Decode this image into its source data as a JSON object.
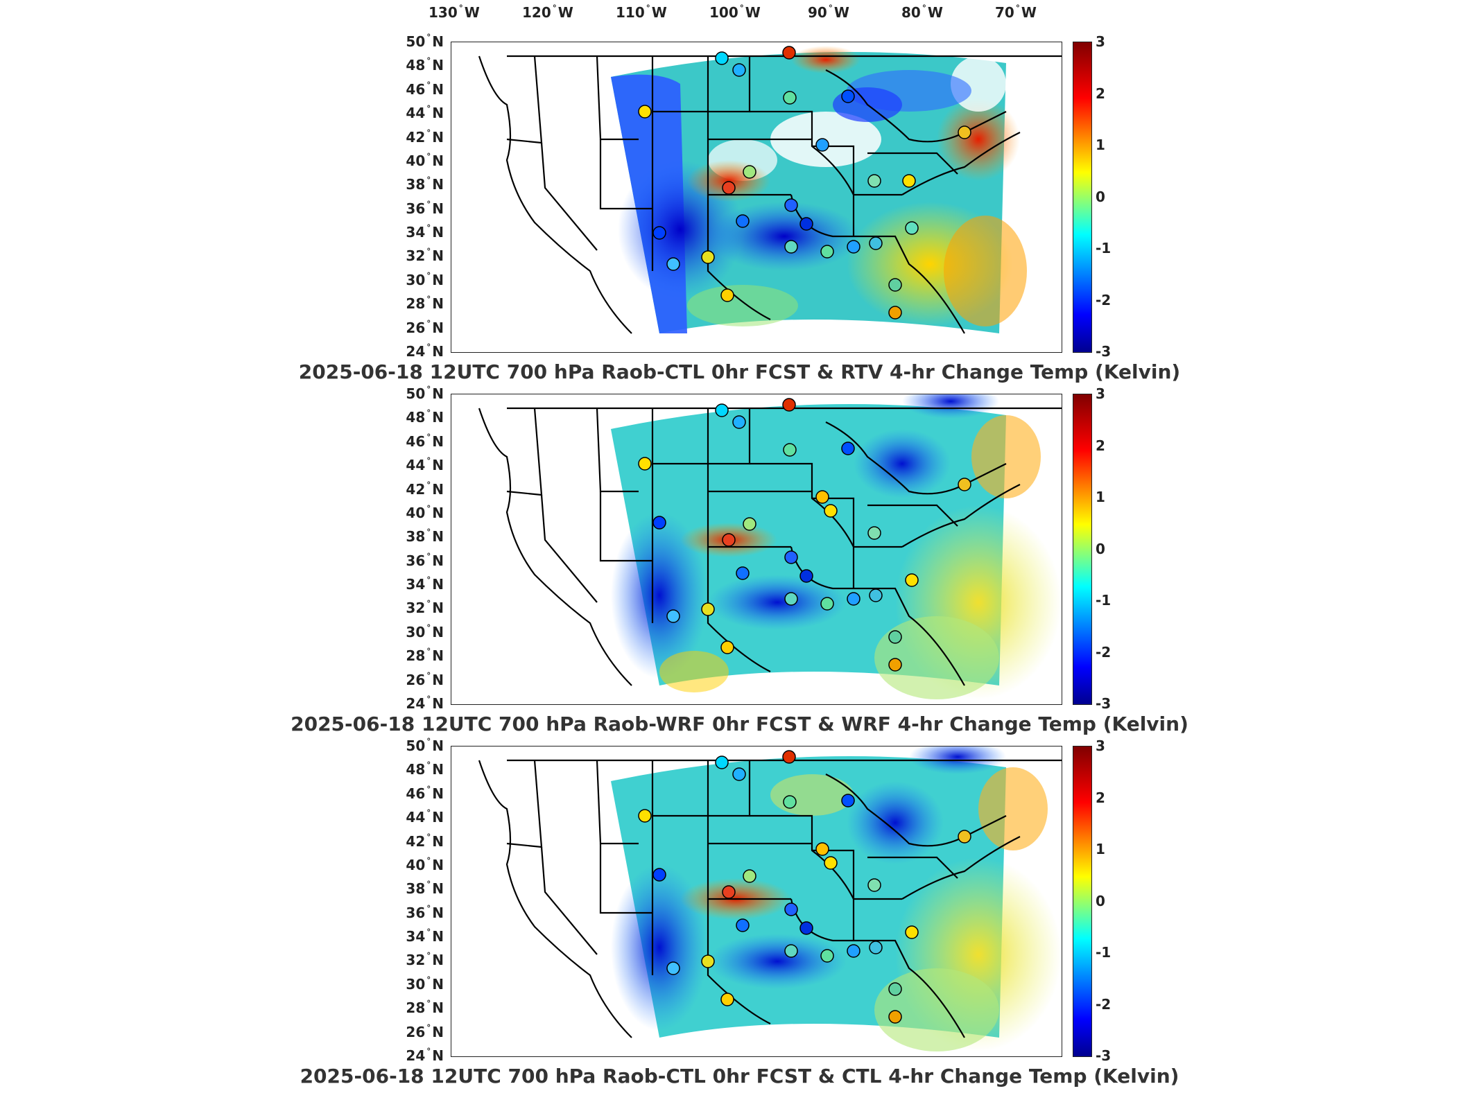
{
  "longitude_labels": [
    "130",
    "120",
    "110",
    "100",
    "90",
    "80",
    "70"
  ],
  "lon_suffix": "W",
  "latitude_labels": [
    "50",
    "48",
    "46",
    "44",
    "42",
    "40",
    "38",
    "36",
    "34",
    "32",
    "30",
    "28",
    "26",
    "24"
  ],
  "lat_suffix": "N",
  "degree_symbol": "°",
  "colorbar": {
    "min": -3,
    "max": 3,
    "ticks": [
      "3",
      "2",
      "1",
      "0",
      "-1",
      "-2",
      "-3"
    ],
    "colormap": "jet"
  },
  "panels": [
    {
      "title": "2025-06-18 12UTC 700 hPa Raob-CTL 0hr FCST & RTV 4-hr Change Temp (Kelvin)"
    },
    {
      "title": "2025-06-18 12UTC 700 hPa Raob-WRF 0hr FCST & WRF 4-hr Change Temp (Kelvin)"
    },
    {
      "title": "2025-06-18 12UTC 700 hPa Raob-CTL 0hr FCST & CTL 4-hr Change Temp (Kelvin)"
    }
  ],
  "colors": {
    "frame": "#222222",
    "state_lines": "#000000"
  }
}
